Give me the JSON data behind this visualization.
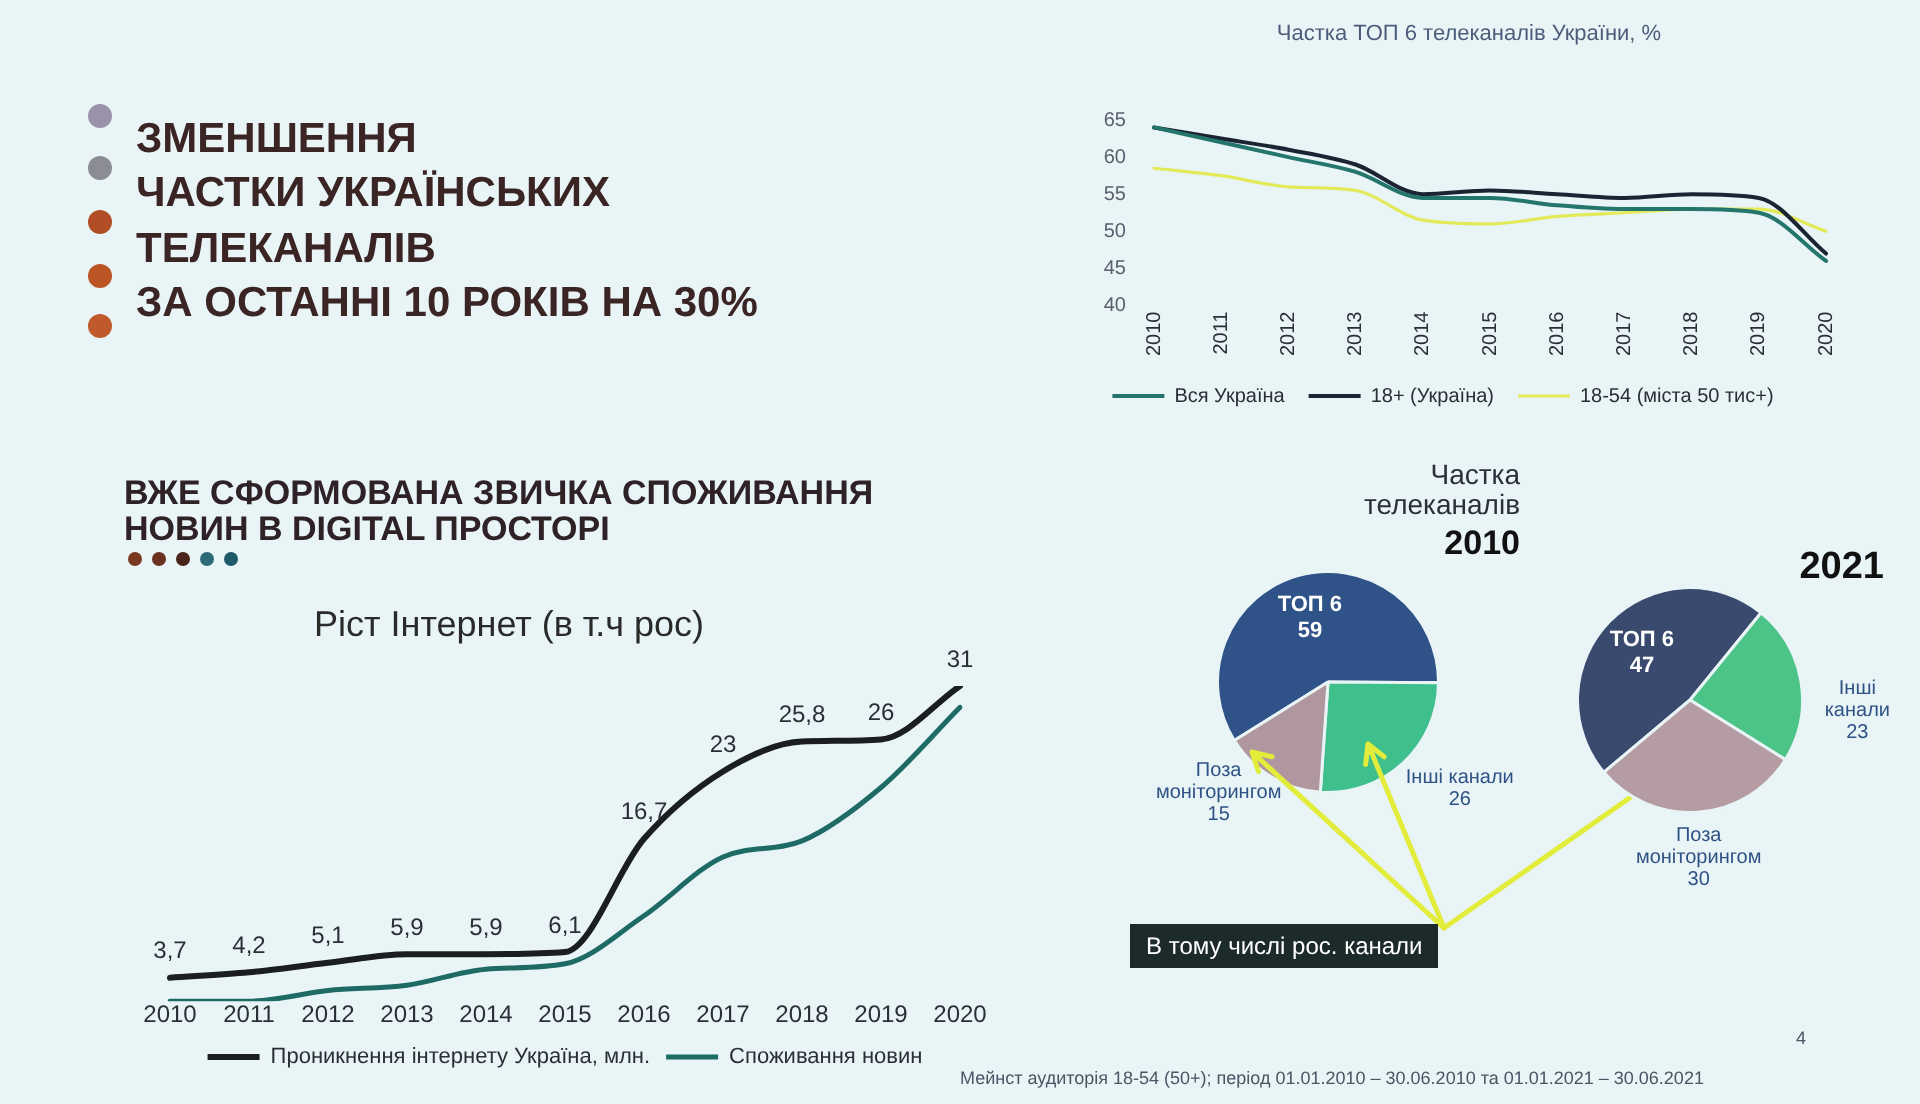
{
  "chart_data": [
    {
      "type": "other",
      "title": "ЗМЕНШЕННЯ\nЧАСТКИ УКРАЇНСЬКИХ\nТЕЛЕКАНАЛІВ\nЗА ОСТАННІ 10 РОКІВ НА 30%"
    },
    {
      "type": "line",
      "title": "Частка ТОП 6 телеканалів України, %",
      "categories": [
        "2010",
        "2011",
        "2012",
        "2013",
        "2014",
        "2015",
        "2016",
        "2017",
        "2018",
        "2019",
        "2020"
      ],
      "series": [
        {
          "name": "Вся Україна",
          "color": "#24756c",
          "values": [
            64,
            62,
            60,
            58,
            54.5,
            54.5,
            53.5,
            53,
            53,
            52.5,
            46
          ]
        },
        {
          "name": "18+ (Україна)",
          "color": "#1b2433",
          "values": [
            64,
            62.5,
            61,
            59,
            55,
            55.5,
            55,
            54.5,
            55,
            54.5,
            47
          ]
        },
        {
          "name": "18-54 (міста 50 тис+)",
          "color": "#e2ea5a",
          "values": [
            58.5,
            57.5,
            56,
            55.5,
            51.5,
            51,
            52,
            52.5,
            53,
            53,
            50
          ]
        }
      ],
      "ylim": [
        40,
        65
      ],
      "yticks": [
        40,
        45,
        50,
        55,
        60,
        65
      ],
      "legend": "bottom"
    },
    {
      "type": "pie",
      "title": "Частка телеканалів",
      "subtitle": "2010",
      "categories": [
        "ТОП 6",
        "Інші канали",
        "Поза моніторингом"
      ],
      "values": [
        59,
        26,
        15
      ],
      "colors": [
        "#2f5288",
        "#3fbf8c",
        "#b0979f"
      ],
      "data_labels": true,
      "annotations": [
        "В тому числі рос. канали"
      ]
    },
    {
      "type": "pie",
      "title": "2021",
      "categories": [
        "ТОП 6",
        "Інші канали",
        "Поза моніторингом"
      ],
      "values": [
        47,
        23,
        30
      ],
      "colors": [
        "#3a4a6e",
        "#4cc487",
        "#b59ca2"
      ],
      "data_labels": true,
      "annotations": [
        "Мейнст аудиторія 18-54 (50+); період 01.01.2010 – 30.06.2010 та 01.01.2021 – 30.06.2021",
        "4"
      ]
    },
    {
      "type": "line",
      "title": "ВЖЕ СФОРМОВАНА ЗВИЧКА СПОЖИВАННЯ НОВИН В DIGITAL ПРОСТОРІ",
      "subtitle": "Ріст Інтернет (в т.ч рос)",
      "categories": [
        "2010",
        "2011",
        "2012",
        "2013",
        "2014",
        "2015",
        "2016",
        "2017",
        "2018",
        "2019",
        "2020"
      ],
      "series": [
        {
          "name": "Проникнення інтернету Україна, млн.",
          "color": "#1a1d22",
          "values": [
            3.7,
            4.2,
            5.1,
            5.9,
            5.9,
            6.1,
            16.7,
            23,
            25.8,
            26,
            31
          ],
          "value_labels": [
            "3,7",
            "4,2",
            "5,1",
            "5,9",
            "5,9",
            "6,1",
            "16,7",
            "23",
            "25,8",
            "26",
            "31"
          ]
        },
        {
          "name": "Споживання новин",
          "color": "#1e6b66",
          "values": [
            1.5,
            1.5,
            2.5,
            3,
            4.5,
            5,
            9.5,
            15,
            16.5,
            21.5,
            29
          ]
        }
      ],
      "tick_labels": "x",
      "legend": "bottom"
    }
  ]
}
